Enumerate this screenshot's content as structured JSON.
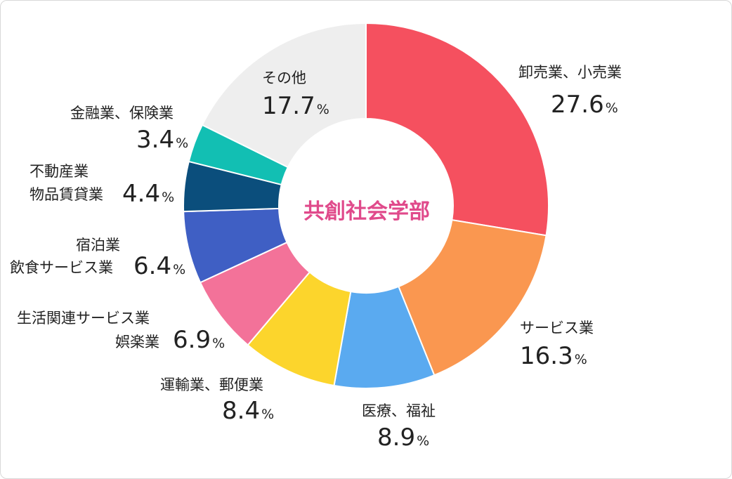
{
  "chart_data": {
    "type": "pie",
    "center_label": "共創社会学部",
    "unit": "%",
    "slices": [
      {
        "name": "卸売業、小売業",
        "value": 27.6,
        "color": "#f5505f"
      },
      {
        "name": "サービス業",
        "value": 16.3,
        "color": "#fa9750"
      },
      {
        "name": "医療、福祉",
        "value": 8.9,
        "color": "#5aaaf0"
      },
      {
        "name": "運輸業、郵便業",
        "value": 8.4,
        "color": "#fcd52c"
      },
      {
        "name": "生活関連サービス業 娯楽業",
        "value": 6.9,
        "color": "#f37299"
      },
      {
        "name": "宿泊業 飲食サービス業",
        "value": 6.4,
        "color": "#3f5fc4"
      },
      {
        "name": "不動産業 物品賃貸業",
        "value": 4.4,
        "color": "#0b4e7c"
      },
      {
        "name": "金融業、保険業",
        "value": 3.4,
        "color": "#12bfb3"
      },
      {
        "name": "その他",
        "value": 17.7,
        "color": "#eeeeee"
      }
    ]
  },
  "labels": {
    "s0": {
      "line1": "卸売業、小売業",
      "value": "27.6"
    },
    "s1": {
      "line1": "サービス業",
      "value": "16.3"
    },
    "s2": {
      "line1": "医療、福祉",
      "value": "8.9"
    },
    "s3": {
      "line1": "運輸業、郵便業",
      "value": "8.4"
    },
    "s4": {
      "line1": "生活関連サービス業",
      "line2": "娯楽業",
      "value": "6.9"
    },
    "s5": {
      "line1": "宿泊業",
      "line2": "飲食サービス業",
      "value": "6.4"
    },
    "s6": {
      "line1": "不動産業",
      "line2": "物品賃貸業",
      "value": "4.4"
    },
    "s7": {
      "line1": "金融業、保険業",
      "value": "3.4"
    },
    "s8": {
      "line1": "その他",
      "value": "17.7"
    },
    "pct": "%"
  }
}
